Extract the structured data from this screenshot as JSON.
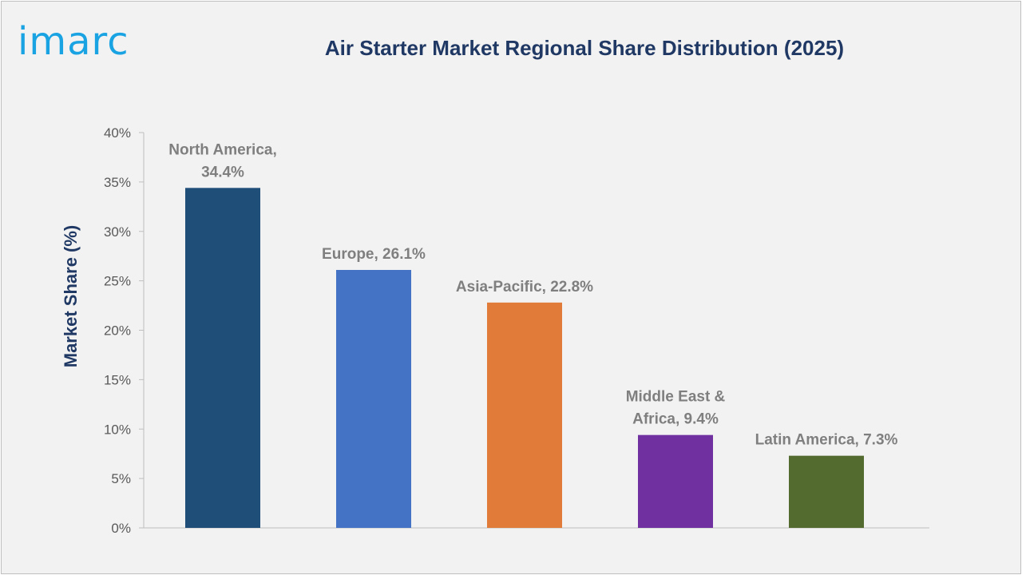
{
  "brand": {
    "logo_text": "imarc",
    "logo_color": "#1aa3e3"
  },
  "chart_data": {
    "type": "bar",
    "title": "Air Starter Market Regional Share Distribution (2025)",
    "xlabel": "",
    "ylabel": "Market Share (%)",
    "ylim": [
      0,
      40
    ],
    "y_ticks": [
      "0%",
      "5%",
      "10%",
      "15%",
      "20%",
      "25%",
      "30%",
      "35%",
      "40%"
    ],
    "grid": false,
    "legend": "none",
    "categories": [
      "North America",
      "Europe",
      "Asia-Pacific",
      "Middle East & Africa",
      "Latin America"
    ],
    "values": [
      34.4,
      26.1,
      22.8,
      9.4,
      7.3
    ],
    "data_labels": [
      [
        "North America,",
        "34.4%"
      ],
      [
        "Europe, 26.1%"
      ],
      [
        "Asia-Pacific, 22.8%"
      ],
      [
        "Middle East &",
        "Africa, 9.4%"
      ],
      [
        "Latin America, 7.3%"
      ]
    ],
    "colors": [
      "#1f4e79",
      "#4472c4",
      "#e07b39",
      "#7030a0",
      "#546b2f"
    ]
  }
}
